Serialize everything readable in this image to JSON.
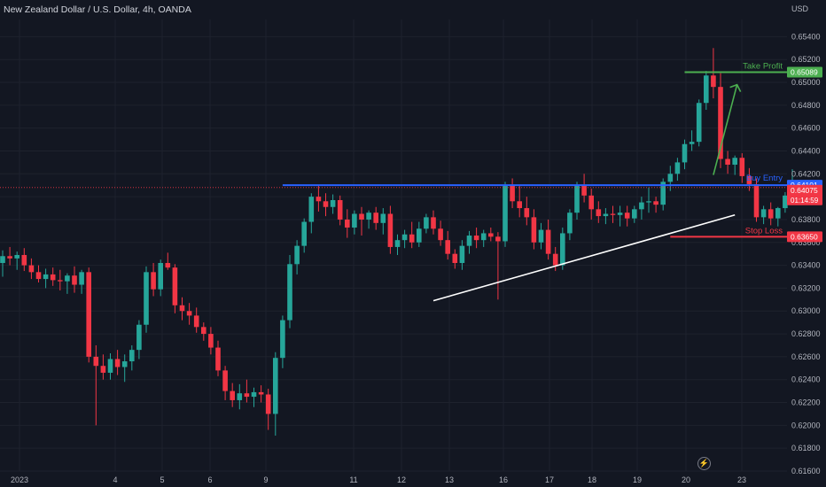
{
  "header": {
    "title": "New Zealand Dollar / U.S. Dollar, 4h, OANDA",
    "currency": "USD"
  },
  "colors": {
    "background": "#131722",
    "up": "#26a69a",
    "down": "#f23645",
    "grid": "#1e222d",
    "buy_entry": "#2962ff",
    "take_profit": "#4caf50",
    "stop_loss": "#f23645",
    "trendline": "#ffffff"
  },
  "icons": {
    "flash": "lightning-icon"
  },
  "chart_data": {
    "type": "candlestick",
    "ylim": [
      0.616,
      0.6555
    ],
    "y_ticks": [
      "0.65400",
      "0.65200",
      "0.65000",
      "0.64800",
      "0.64600",
      "0.64400",
      "0.64200",
      "0.64000",
      "0.63800",
      "0.63600",
      "0.63400",
      "0.63200",
      "0.63000",
      "0.62800",
      "0.62600",
      "0.62400",
      "0.62200",
      "0.62000",
      "0.61800",
      "0.61600"
    ],
    "x_ticks": [
      "2023",
      "4",
      "5",
      "6",
      "9",
      "11",
      "12",
      "13",
      "16",
      "17",
      "18",
      "19",
      "20",
      "23"
    ],
    "price_labels": {
      "current_price": "0.64075",
      "countdown": "01:14:59",
      "buy_entry": "0.64101",
      "take_profit": "0.65089",
      "stop_loss": "0.63650"
    },
    "annotations": {
      "take_profit_label": "Take Profit",
      "buy_entry_label": "Buy Entry",
      "stop_loss_label": "Stop Loss"
    },
    "levels": {
      "buy_entry": 0.64101,
      "take_profit": 0.65089,
      "stop_loss": 0.6365
    },
    "trendline": {
      "from": {
        "bar": 0,
        "price": 0.6309
      },
      "to": {
        "bar": 1,
        "price": 0.6384
      }
    },
    "candles": [
      {
        "o": 0.6342,
        "h": 0.6353,
        "l": 0.633,
        "c": 0.6348
      },
      {
        "o": 0.6348,
        "h": 0.6356,
        "l": 0.634,
        "c": 0.6346
      },
      {
        "o": 0.6346,
        "h": 0.6352,
        "l": 0.6336,
        "c": 0.6349
      },
      {
        "o": 0.6349,
        "h": 0.6355,
        "l": 0.6335,
        "c": 0.634
      },
      {
        "o": 0.634,
        "h": 0.6346,
        "l": 0.6328,
        "c": 0.6334
      },
      {
        "o": 0.6334,
        "h": 0.634,
        "l": 0.6325,
        "c": 0.6328
      },
      {
        "o": 0.6328,
        "h": 0.6337,
        "l": 0.632,
        "c": 0.6332
      },
      {
        "o": 0.6332,
        "h": 0.6338,
        "l": 0.6322,
        "c": 0.6327
      },
      {
        "o": 0.6327,
        "h": 0.6336,
        "l": 0.6318,
        "c": 0.6326
      },
      {
        "o": 0.6326,
        "h": 0.6333,
        "l": 0.6315,
        "c": 0.6331
      },
      {
        "o": 0.6331,
        "h": 0.6339,
        "l": 0.6316,
        "c": 0.6323
      },
      {
        "o": 0.6323,
        "h": 0.6336,
        "l": 0.6315,
        "c": 0.6334
      },
      {
        "o": 0.6334,
        "h": 0.6338,
        "l": 0.6255,
        "c": 0.626
      },
      {
        "o": 0.626,
        "h": 0.627,
        "l": 0.62,
        "c": 0.6252
      },
      {
        "o": 0.6252,
        "h": 0.6262,
        "l": 0.624,
        "c": 0.6246
      },
      {
        "o": 0.6246,
        "h": 0.6263,
        "l": 0.624,
        "c": 0.6258
      },
      {
        "o": 0.6258,
        "h": 0.6266,
        "l": 0.6244,
        "c": 0.6251
      },
      {
        "o": 0.6251,
        "h": 0.6262,
        "l": 0.6238,
        "c": 0.6256
      },
      {
        "o": 0.6256,
        "h": 0.627,
        "l": 0.6248,
        "c": 0.6266
      },
      {
        "o": 0.6266,
        "h": 0.6292,
        "l": 0.6258,
        "c": 0.6288
      },
      {
        "o": 0.6288,
        "h": 0.6339,
        "l": 0.6281,
        "c": 0.6334
      },
      {
        "o": 0.6334,
        "h": 0.6342,
        "l": 0.6313,
        "c": 0.6319
      },
      {
        "o": 0.6319,
        "h": 0.6345,
        "l": 0.6313,
        "c": 0.6342
      },
      {
        "o": 0.6342,
        "h": 0.6351,
        "l": 0.6336,
        "c": 0.6338
      },
      {
        "o": 0.6338,
        "h": 0.6341,
        "l": 0.6298,
        "c": 0.6305
      },
      {
        "o": 0.6305,
        "h": 0.6312,
        "l": 0.6292,
        "c": 0.63
      },
      {
        "o": 0.63,
        "h": 0.6307,
        "l": 0.6288,
        "c": 0.6296
      },
      {
        "o": 0.6296,
        "h": 0.6303,
        "l": 0.6281,
        "c": 0.6286
      },
      {
        "o": 0.6286,
        "h": 0.629,
        "l": 0.6274,
        "c": 0.628
      },
      {
        "o": 0.628,
        "h": 0.6286,
        "l": 0.6262,
        "c": 0.6268
      },
      {
        "o": 0.6268,
        "h": 0.6274,
        "l": 0.6243,
        "c": 0.6248
      },
      {
        "o": 0.6248,
        "h": 0.6252,
        "l": 0.6222,
        "c": 0.623
      },
      {
        "o": 0.623,
        "h": 0.6237,
        "l": 0.6216,
        "c": 0.6222
      },
      {
        "o": 0.6222,
        "h": 0.6236,
        "l": 0.6214,
        "c": 0.6228
      },
      {
        "o": 0.6228,
        "h": 0.624,
        "l": 0.622,
        "c": 0.6225
      },
      {
        "o": 0.6225,
        "h": 0.6233,
        "l": 0.6216,
        "c": 0.6229
      },
      {
        "o": 0.6229,
        "h": 0.6235,
        "l": 0.622,
        "c": 0.6227
      },
      {
        "o": 0.6227,
        "h": 0.6232,
        "l": 0.6196,
        "c": 0.621
      },
      {
        "o": 0.621,
        "h": 0.6264,
        "l": 0.6191,
        "c": 0.6259
      },
      {
        "o": 0.6259,
        "h": 0.6296,
        "l": 0.625,
        "c": 0.6292
      },
      {
        "o": 0.6292,
        "h": 0.6349,
        "l": 0.6285,
        "c": 0.6341
      },
      {
        "o": 0.6341,
        "h": 0.6362,
        "l": 0.6332,
        "c": 0.6357
      },
      {
        "o": 0.6357,
        "h": 0.6381,
        "l": 0.6351,
        "c": 0.6378
      },
      {
        "o": 0.6378,
        "h": 0.6403,
        "l": 0.6368,
        "c": 0.64
      },
      {
        "o": 0.64,
        "h": 0.641,
        "l": 0.6387,
        "c": 0.6396
      },
      {
        "o": 0.6396,
        "h": 0.6403,
        "l": 0.6383,
        "c": 0.6391
      },
      {
        "o": 0.6391,
        "h": 0.6402,
        "l": 0.6385,
        "c": 0.6397
      },
      {
        "o": 0.6397,
        "h": 0.6401,
        "l": 0.6375,
        "c": 0.638
      },
      {
        "o": 0.638,
        "h": 0.6389,
        "l": 0.6364,
        "c": 0.6373
      },
      {
        "o": 0.6373,
        "h": 0.6388,
        "l": 0.6367,
        "c": 0.6385
      },
      {
        "o": 0.6385,
        "h": 0.6391,
        "l": 0.6366,
        "c": 0.638
      },
      {
        "o": 0.638,
        "h": 0.6388,
        "l": 0.6372,
        "c": 0.6386
      },
      {
        "o": 0.6386,
        "h": 0.6391,
        "l": 0.6371,
        "c": 0.6377
      },
      {
        "o": 0.6377,
        "h": 0.639,
        "l": 0.6367,
        "c": 0.6385
      },
      {
        "o": 0.6385,
        "h": 0.6392,
        "l": 0.635,
        "c": 0.6356
      },
      {
        "o": 0.6356,
        "h": 0.6367,
        "l": 0.6349,
        "c": 0.6362
      },
      {
        "o": 0.6362,
        "h": 0.6371,
        "l": 0.6355,
        "c": 0.6367
      },
      {
        "o": 0.6367,
        "h": 0.6378,
        "l": 0.6355,
        "c": 0.636
      },
      {
        "o": 0.636,
        "h": 0.6378,
        "l": 0.6356,
        "c": 0.6372
      },
      {
        "o": 0.6372,
        "h": 0.6385,
        "l": 0.6368,
        "c": 0.6382
      },
      {
        "o": 0.6382,
        "h": 0.6388,
        "l": 0.6367,
        "c": 0.6372
      },
      {
        "o": 0.6372,
        "h": 0.6379,
        "l": 0.6357,
        "c": 0.6362
      },
      {
        "o": 0.6362,
        "h": 0.637,
        "l": 0.6345,
        "c": 0.635
      },
      {
        "o": 0.635,
        "h": 0.6354,
        "l": 0.6337,
        "c": 0.6342
      },
      {
        "o": 0.6342,
        "h": 0.6362,
        "l": 0.6336,
        "c": 0.6357
      },
      {
        "o": 0.6357,
        "h": 0.637,
        "l": 0.635,
        "c": 0.6366
      },
      {
        "o": 0.6366,
        "h": 0.6373,
        "l": 0.6355,
        "c": 0.6362
      },
      {
        "o": 0.6362,
        "h": 0.6371,
        "l": 0.6356,
        "c": 0.6368
      },
      {
        "o": 0.6368,
        "h": 0.6373,
        "l": 0.6361,
        "c": 0.6365
      },
      {
        "o": 0.6365,
        "h": 0.6369,
        "l": 0.631,
        "c": 0.6361
      },
      {
        "o": 0.6361,
        "h": 0.6413,
        "l": 0.6356,
        "c": 0.641
      },
      {
        "o": 0.641,
        "h": 0.6416,
        "l": 0.639,
        "c": 0.6396
      },
      {
        "o": 0.6396,
        "h": 0.641,
        "l": 0.6382,
        "c": 0.639
      },
      {
        "o": 0.639,
        "h": 0.64,
        "l": 0.6375,
        "c": 0.6382
      },
      {
        "o": 0.6382,
        "h": 0.6389,
        "l": 0.6354,
        "c": 0.636
      },
      {
        "o": 0.636,
        "h": 0.6377,
        "l": 0.6354,
        "c": 0.6371
      },
      {
        "o": 0.6371,
        "h": 0.638,
        "l": 0.6345,
        "c": 0.635
      },
      {
        "o": 0.635,
        "h": 0.6356,
        "l": 0.6335,
        "c": 0.634
      },
      {
        "o": 0.634,
        "h": 0.6373,
        "l": 0.6336,
        "c": 0.6368
      },
      {
        "o": 0.6368,
        "h": 0.6389,
        "l": 0.6362,
        "c": 0.6386
      },
      {
        "o": 0.6386,
        "h": 0.6413,
        "l": 0.638,
        "c": 0.641
      },
      {
        "o": 0.641,
        "h": 0.642,
        "l": 0.6395,
        "c": 0.6401
      },
      {
        "o": 0.6401,
        "h": 0.6407,
        "l": 0.638,
        "c": 0.6389
      },
      {
        "o": 0.6389,
        "h": 0.6396,
        "l": 0.6377,
        "c": 0.6383
      },
      {
        "o": 0.6383,
        "h": 0.639,
        "l": 0.6376,
        "c": 0.6385
      },
      {
        "o": 0.6385,
        "h": 0.6392,
        "l": 0.6377,
        "c": 0.6384
      },
      {
        "o": 0.6384,
        "h": 0.6392,
        "l": 0.6374,
        "c": 0.6386
      },
      {
        "o": 0.6386,
        "h": 0.6392,
        "l": 0.6374,
        "c": 0.6381
      },
      {
        "o": 0.6381,
        "h": 0.6392,
        "l": 0.6377,
        "c": 0.6389
      },
      {
        "o": 0.6389,
        "h": 0.64,
        "l": 0.638,
        "c": 0.6395
      },
      {
        "o": 0.6395,
        "h": 0.6408,
        "l": 0.6386,
        "c": 0.6396
      },
      {
        "o": 0.6396,
        "h": 0.64,
        "l": 0.6386,
        "c": 0.6393
      },
      {
        "o": 0.6393,
        "h": 0.6416,
        "l": 0.6388,
        "c": 0.6413
      },
      {
        "o": 0.6413,
        "h": 0.6427,
        "l": 0.6405,
        "c": 0.642
      },
      {
        "o": 0.642,
        "h": 0.6434,
        "l": 0.6414,
        "c": 0.643
      },
      {
        "o": 0.643,
        "h": 0.645,
        "l": 0.6424,
        "c": 0.6446
      },
      {
        "o": 0.6446,
        "h": 0.6458,
        "l": 0.644,
        "c": 0.6448
      },
      {
        "o": 0.6448,
        "h": 0.6485,
        "l": 0.6444,
        "c": 0.6482
      },
      {
        "o": 0.6482,
        "h": 0.651,
        "l": 0.6476,
        "c": 0.6506
      },
      {
        "o": 0.6506,
        "h": 0.653,
        "l": 0.6486,
        "c": 0.6496
      },
      {
        "o": 0.6496,
        "h": 0.6508,
        "l": 0.6425,
        "c": 0.6433
      },
      {
        "o": 0.6433,
        "h": 0.644,
        "l": 0.642,
        "c": 0.6428
      },
      {
        "o": 0.6428,
        "h": 0.6436,
        "l": 0.6419,
        "c": 0.6434
      },
      {
        "o": 0.6434,
        "h": 0.6438,
        "l": 0.6412,
        "c": 0.6418
      },
      {
        "o": 0.6418,
        "h": 0.6425,
        "l": 0.6405,
        "c": 0.6411
      },
      {
        "o": 0.6411,
        "h": 0.6416,
        "l": 0.6378,
        "c": 0.6382
      },
      {
        "o": 0.6382,
        "h": 0.6392,
        "l": 0.6376,
        "c": 0.6389
      },
      {
        "o": 0.6389,
        "h": 0.6395,
        "l": 0.6375,
        "c": 0.6381
      },
      {
        "o": 0.6381,
        "h": 0.6391,
        "l": 0.6374,
        "c": 0.639
      },
      {
        "o": 0.639,
        "h": 0.6404,
        "l": 0.6386,
        "c": 0.6401
      },
      {
        "o": 0.6401,
        "h": 0.6424,
        "l": 0.6399,
        "c": 0.6407
      },
      {
        "o": 0.6407,
        "h": 0.6411,
        "l": 0.6404,
        "c": 0.6408
      }
    ]
  }
}
